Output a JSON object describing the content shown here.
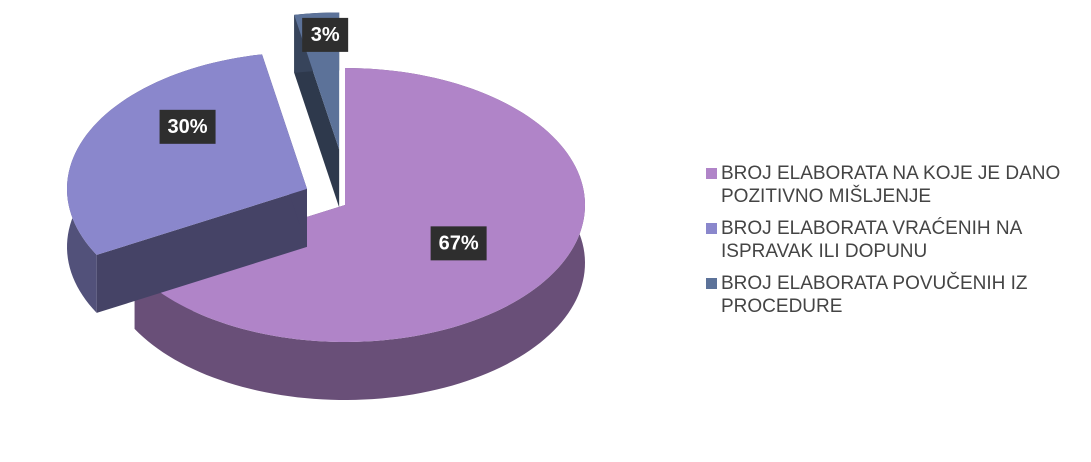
{
  "chart_data": {
    "type": "pie",
    "categories": [
      "BROJ ELABORATA NA KOJE JE DANO POZITIVNO MIŠLJENJE",
      "BROJ ELABORATA VRAĆENIH NA ISPRAVAK ILI DOPUNU",
      "BROJ ELABORATA POVUČENIH IZ PROCEDURE"
    ],
    "values": [
      67,
      30,
      3
    ],
    "value_labels": [
      "67%",
      "30%",
      "3%"
    ],
    "colors": [
      "#b084c8",
      "#8a87cc",
      "#5c7299"
    ],
    "legend": "right"
  }
}
